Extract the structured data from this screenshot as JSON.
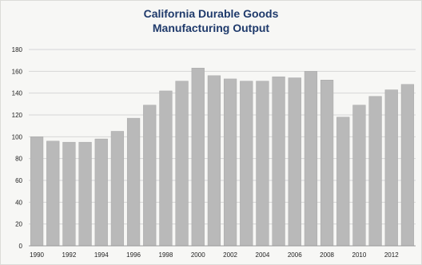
{
  "chart_data": {
    "type": "bar",
    "title_lines": [
      "California Durable Goods",
      "Manufacturing Output"
    ],
    "xlabel": "",
    "ylabel": "",
    "categories": [
      "1990",
      "1991",
      "1992",
      "1993",
      "1994",
      "1995",
      "1996",
      "1997",
      "1998",
      "1999",
      "2000",
      "2001",
      "2002",
      "2003",
      "2004",
      "2005",
      "2006",
      "2007",
      "2008",
      "2009",
      "2010",
      "2011",
      "2012",
      "2013"
    ],
    "x_tick_labels": [
      "1990",
      "1992",
      "1994",
      "1996",
      "1998",
      "2000",
      "2002",
      "2004",
      "2006",
      "2008",
      "2010",
      "2012"
    ],
    "values": [
      100,
      96,
      95,
      95,
      98,
      105,
      117,
      129,
      142,
      151,
      163,
      156,
      153,
      151,
      151,
      155,
      154,
      160,
      152,
      118,
      129,
      137,
      143,
      148
    ],
    "ylim": [
      0,
      180
    ],
    "y_ticks": [
      0,
      20,
      40,
      60,
      80,
      100,
      120,
      140,
      160,
      180
    ],
    "grid": true,
    "legend": "none",
    "colors": {
      "bar": "#b9b9b9",
      "bar_edge": "#a8a8a8",
      "grid": "#d6d6d6",
      "title": "#1f3a6b"
    }
  }
}
